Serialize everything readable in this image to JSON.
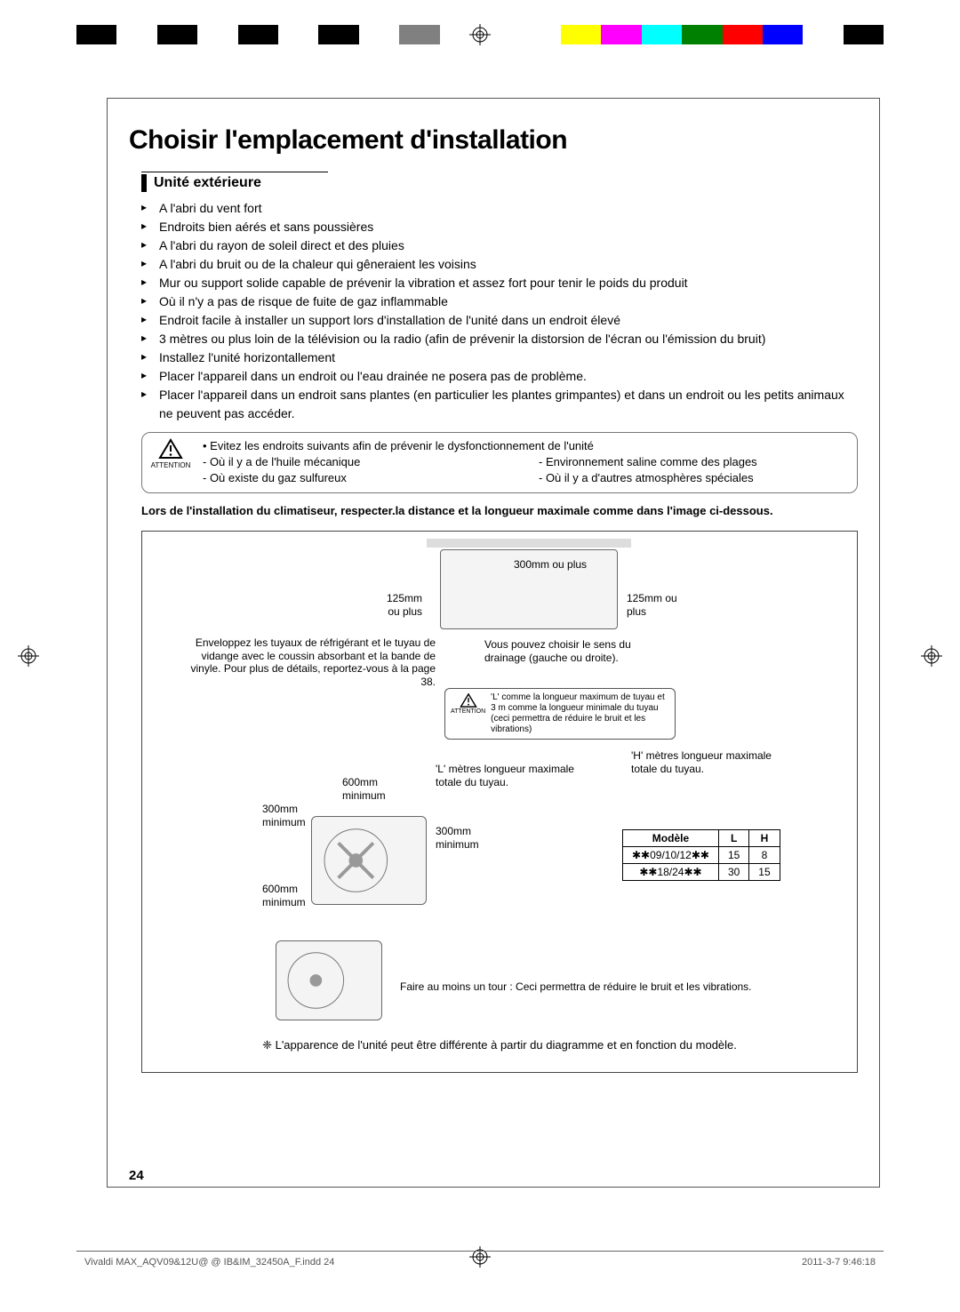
{
  "colorStrip": [
    "#000000",
    "#ffffff",
    "#000000",
    "#ffffff",
    "#000000",
    "#ffffff",
    "#000000",
    "#ffffff",
    "#808080",
    "#ffffff",
    "#ffffff",
    "#ffffff",
    "#ffff00",
    "#ff00ff",
    "#00ffff",
    "#008000",
    "#ff0000",
    "#0000ff",
    "#ffffff",
    "#000000"
  ],
  "title": "Choisir l'emplacement d'installation",
  "sectionTitle": "Unité extérieure",
  "bullets": [
    "A l'abri du vent fort",
    "Endroits bien aérés et sans poussières",
    "A l'abri du rayon de soleil direct et des pluies",
    "A l'abri du bruit ou de la chaleur qui gêneraient les voisins",
    "Mur ou support solide capable de prévenir la vibration et assez fort pour tenir le poids du produit",
    "Où il n'y a pas de risque de fuite de gaz inflammable",
    "Endroit facile à installer un support lors d'installation de l'unité dans un endroit élevé",
    "3 mètres ou plus loin de la télévision ou la radio (afin de prévenir la distorsion de l'écran ou l'émission du bruit)",
    "Installez l'unité horizontallement",
    "Placer l'appareil dans un endroit ou l'eau drainée ne posera pas de problème.",
    "Placer l'appareil dans un endroit sans plantes (en particulier les plantes grimpantes) et dans un endroit ou les petits animaux ne peuvent pas accéder."
  ],
  "attention": {
    "label": "ATTENTION",
    "top": "• Evitez les endroits suivants afin de prévenir le dysfonctionnement de l'unité",
    "col1a": "- Où il y a de l'huile mécanique",
    "col1b": "- Où existe du gaz sulfureux",
    "col2a": "- Environnement saline comme des plages",
    "col2b": "- Où il y a d'autres atmosphères spéciales"
  },
  "boldLine": "Lors de l'installation du climatiseur, respecter.la distance et la longueur maximale comme dans l'image ci-dessous.",
  "diagram": {
    "d300plus": "300mm ou plus",
    "d125plusL": "125mm\nou plus",
    "d125plusR": "125mm ou\nplus",
    "wrapNote": "Enveloppez les tuyaux de réfrigérant et le tuyau de vidange avec le coussin absorbant et la bande de vinyle. Pour plus de détails, reportez-vous à la page 38.",
    "drainNote": "Vous pouvez choisir le sens du drainage (gauche ou droite).",
    "tinyAttentionLabel": "ATTENTION",
    "tinyAttentionText": "'L' comme la longueur maximum de tuyau et 3 m comme la longueur minimale du tuyau (ceci permettra de réduire le bruit et les vibrations)",
    "hmax": "'H' mètres longueur maximale totale du tuyau.",
    "lmax": "'L' mètres longueur maximale totale du tuyau.",
    "d600min": "600mm\nminimum",
    "d300min": "300mm\nminimum",
    "d300min2": "300mm\nminimum",
    "d600min2": "600mm\nminimum",
    "turnNote": "Faire au moins un tour : Ceci permettra de réduire le bruit et les vibrations.",
    "footnote": "❈ L'apparence de l'unité peut être différente à partir du diagramme et en fonction du modèle."
  },
  "table": {
    "h1": "Modèle",
    "h2": "L",
    "h3": "H",
    "r1c1": "✱✱09/10/12✱✱",
    "r1c2": "15",
    "r1c3": "8",
    "r2c1": "✱✱18/24✱✱",
    "r2c2": "30",
    "r2c3": "15"
  },
  "pageNum": "24",
  "footerL": "Vivaldi MAX_AQV09&12U@ @ IB&IM_32450A_F.indd   24",
  "footerR": "2011-3-7   9:46:18"
}
